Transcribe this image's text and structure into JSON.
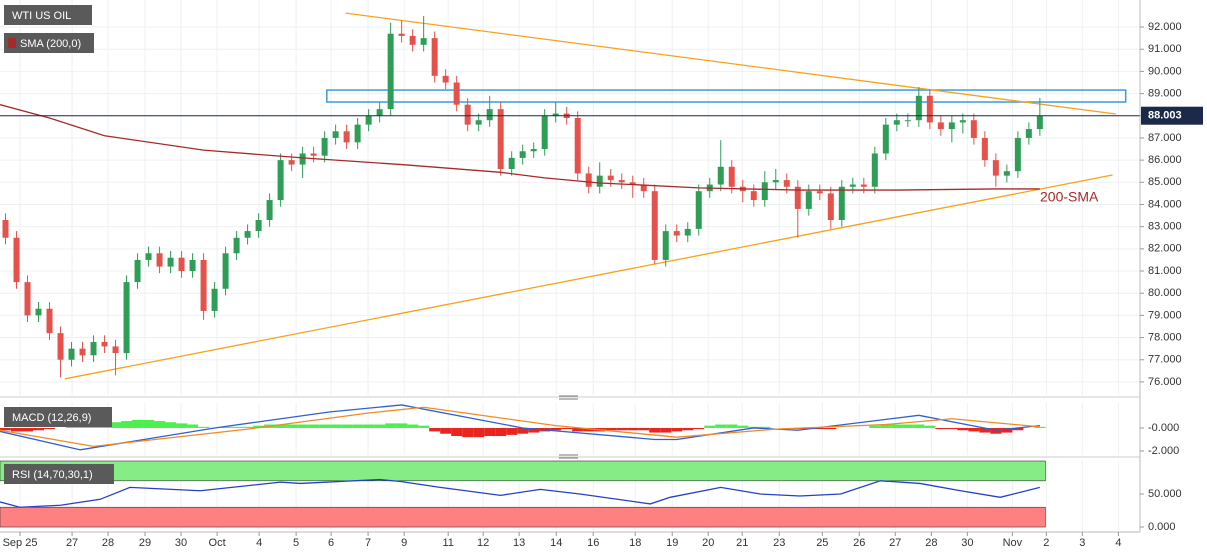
{
  "chart_data": [
    {
      "type": "candlestick",
      "title": "WTI US OIL",
      "open": [
        83.3,
        82.5,
        80.5,
        79.0,
        79.3,
        78.2,
        77.0,
        77.5,
        77.2,
        77.8,
        77.6,
        77.3,
        80.5,
        81.5,
        81.8,
        81.2,
        81.6,
        81.0,
        81.5,
        79.2,
        80.2,
        81.8,
        82.5,
        82.8,
        83.3,
        84.2,
        86.0,
        85.8,
        86.3,
        86.2,
        87.0,
        87.3,
        86.8,
        87.6,
        88.0,
        88.3,
        91.7,
        91.6,
        91.2,
        91.5,
        89.8,
        89.5,
        88.5,
        87.6,
        87.8,
        88.3,
        85.6,
        86.1,
        86.4,
        86.5,
        88.0,
        88.1,
        87.9,
        85.4,
        84.8,
        85.3,
        85.1,
        85.0,
        84.9,
        84.6,
        81.5,
        82.8,
        82.6,
        82.9,
        84.6,
        84.9,
        85.7,
        84.8,
        84.6,
        84.2,
        85.0,
        85.1,
        84.8,
        83.8,
        84.6,
        84.5,
        83.3,
        84.8,
        84.9,
        84.8,
        86.3,
        87.6,
        87.8,
        87.8,
        88.9,
        87.7,
        87.4,
        87.7,
        87.8,
        87.0,
        86.0,
        85.3,
        85.5,
        87.0,
        87.4
      ],
      "high": [
        83.6,
        82.8,
        80.8,
        79.6,
        79.6,
        78.5,
        77.8,
        77.8,
        78.1,
        78.1,
        77.9,
        80.8,
        81.8,
        82.1,
        82.1,
        81.9,
        81.9,
        81.8,
        81.8,
        80.5,
        82.1,
        82.8,
        83.1,
        83.6,
        84.5,
        86.3,
        86.3,
        86.6,
        86.6,
        87.3,
        87.6,
        87.6,
        87.9,
        88.3,
        88.6,
        92.2,
        92.3,
        91.9,
        92.5,
        91.8,
        90.1,
        89.8,
        88.8,
        88.1,
        88.9,
        88.6,
        86.4,
        86.7,
        86.8,
        88.3,
        88.6,
        88.4,
        88.2,
        85.7,
        85.9,
        85.6,
        85.4,
        85.3,
        85.2,
        84.9,
        83.1,
        83.1,
        83.2,
        84.9,
        85.2,
        86.9,
        86.0,
        85.1,
        84.9,
        85.5,
        85.6,
        85.4,
        85.1,
        84.9,
        84.9,
        84.8,
        85.1,
        85.2,
        85.2,
        86.6,
        87.9,
        88.1,
        88.1,
        89.3,
        89.2,
        88.0,
        88.0,
        88.1,
        88.1,
        87.3,
        86.3,
        85.8,
        87.3,
        87.7,
        88.8
      ],
      "low": [
        82.2,
        80.2,
        78.7,
        78.7,
        77.9,
        76.2,
        76.7,
        76.9,
        76.9,
        77.3,
        76.3,
        77.0,
        80.2,
        81.2,
        80.9,
        80.9,
        80.7,
        80.7,
        78.8,
        78.9,
        79.9,
        81.5,
        82.2,
        82.5,
        83.0,
        83.9,
        85.5,
        85.2,
        85.9,
        85.9,
        86.7,
        86.5,
        86.5,
        87.3,
        87.7,
        88.0,
        91.3,
        90.9,
        90.9,
        89.5,
        89.2,
        88.2,
        87.3,
        87.3,
        87.5,
        85.3,
        85.3,
        85.8,
        86.1,
        86.2,
        87.7,
        87.6,
        85.1,
        84.5,
        84.5,
        84.8,
        84.7,
        84.3,
        84.3,
        81.3,
        81.2,
        82.3,
        82.3,
        82.6,
        84.3,
        84.6,
        84.5,
        84.1,
        83.9,
        83.9,
        84.7,
        84.5,
        82.5,
        83.5,
        84.2,
        82.9,
        83.0,
        84.5,
        84.5,
        84.5,
        86.0,
        87.3,
        87.5,
        87.5,
        87.4,
        87.1,
        86.8,
        87.2,
        86.7,
        85.7,
        84.8,
        85.0,
        85.2,
        86.7,
        87.1
      ],
      "close": [
        82.5,
        80.5,
        79.0,
        79.3,
        78.2,
        77.0,
        77.5,
        77.2,
        77.8,
        77.6,
        77.3,
        80.5,
        81.5,
        81.8,
        81.2,
        81.6,
        81.0,
        81.5,
        79.2,
        80.2,
        81.8,
        82.5,
        82.8,
        83.3,
        84.2,
        86.0,
        85.8,
        86.3,
        86.2,
        87.0,
        87.3,
        86.8,
        87.6,
        88.0,
        88.3,
        91.7,
        91.6,
        91.2,
        91.5,
        89.8,
        89.5,
        88.5,
        87.6,
        87.8,
        88.3,
        85.6,
        86.1,
        86.4,
        86.5,
        88.0,
        88.1,
        87.9,
        85.4,
        84.8,
        85.3,
        85.1,
        85.0,
        84.9,
        84.6,
        81.5,
        82.8,
        82.6,
        82.9,
        84.6,
        84.9,
        85.7,
        84.8,
        84.6,
        84.2,
        85.0,
        85.1,
        84.8,
        83.8,
        84.6,
        84.5,
        83.3,
        84.8,
        84.9,
        84.8,
        86.3,
        87.6,
        87.8,
        87.8,
        88.9,
        87.7,
        87.4,
        87.7,
        87.8,
        87.0,
        86.0,
        85.3,
        85.5,
        87.0,
        87.4,
        88.003
      ],
      "up_color": "#2e9e57",
      "down_color": "#e5524c",
      "last_price_color": "#1c2a4a",
      "ylim": [
        75.41,
        93.22
      ],
      "yticks": [
        {
          "value": 76,
          "label": "76.000"
        },
        {
          "value": 77,
          "label": "77.000"
        },
        {
          "value": 78,
          "label": "78.000"
        },
        {
          "value": 79,
          "label": "79.000"
        },
        {
          "value": 80,
          "label": "80.000"
        },
        {
          "value": 81,
          "label": "81.000"
        },
        {
          "value": 82,
          "label": "82.000"
        },
        {
          "value": 83,
          "label": "83.000"
        },
        {
          "value": 84,
          "label": "84.000"
        },
        {
          "value": 85,
          "label": "85.000"
        },
        {
          "value": 86,
          "label": "86.000"
        },
        {
          "value": 87,
          "label": "87.000"
        },
        {
          "value": 88,
          "label": "88.000"
        },
        {
          "value": 89,
          "label": "89.000"
        },
        {
          "value": 90,
          "label": "90.000"
        },
        {
          "value": 91,
          "label": "91.000"
        },
        {
          "value": 92,
          "label": "92.000"
        }
      ],
      "xlim": [
        -0.5,
        103.1
      ],
      "xticks": [
        {
          "value": 1.32,
          "label": "Sep 25"
        },
        {
          "value": 6.05,
          "label": "27"
        },
        {
          "value": 9.32,
          "label": "28"
        },
        {
          "value": 12.68,
          "label": "29"
        },
        {
          "value": 15.95,
          "label": "30"
        },
        {
          "value": 19.23,
          "label": "Oct"
        },
        {
          "value": 23.05,
          "label": "4"
        },
        {
          "value": 26.41,
          "label": "5"
        },
        {
          "value": 29.59,
          "label": "6"
        },
        {
          "value": 32.95,
          "label": "7"
        },
        {
          "value": 36.23,
          "label": "9"
        },
        {
          "value": 40.23,
          "label": "11"
        },
        {
          "value": 43.41,
          "label": "12"
        },
        {
          "value": 46.68,
          "label": "13"
        },
        {
          "value": 50.05,
          "label": "14"
        },
        {
          "value": 53.41,
          "label": "16"
        },
        {
          "value": 57.23,
          "label": "18"
        },
        {
          "value": 60.59,
          "label": "19"
        },
        {
          "value": 63.86,
          "label": "20"
        },
        {
          "value": 66.95,
          "label": "21"
        },
        {
          "value": 70.32,
          "label": "23"
        },
        {
          "value": 74.23,
          "label": "25"
        },
        {
          "value": 77.59,
          "label": "26"
        },
        {
          "value": 80.86,
          "label": "27"
        },
        {
          "value": 84.14,
          "label": "28"
        },
        {
          "value": 87.41,
          "label": "30"
        },
        {
          "value": 91.5,
          "label": "Nov"
        },
        {
          "value": 94.59,
          "label": "2"
        },
        {
          "value": 97.86,
          "label": "3"
        },
        {
          "value": 101.14,
          "label": "4"
        }
      ],
      "grid": true,
      "series": [
        {
          "name": "SMA (200,0)",
          "color": "#a52a2a",
          "x": [
            -0.5,
            4,
            9,
            18,
            27,
            36,
            45,
            49,
            54,
            63,
            72,
            81,
            90,
            94
          ],
          "values": [
            88.5,
            87.9,
            87.1,
            86.45,
            86.1,
            85.8,
            85.45,
            85.2,
            84.97,
            84.75,
            84.65,
            84.65,
            84.7,
            84.7
          ]
        }
      ],
      "trendlines": [
        {
          "color": "#f7a21b",
          "x": [
            30.9,
            100.9
          ],
          "values": [
            92.63,
            88.08
          ]
        },
        {
          "color": "#f7a21b",
          "x": [
            5.4,
            100.6
          ],
          "values": [
            76.14,
            85.33
          ]
        }
      ],
      "zone": {
        "color": "#3a9ae0",
        "x": [
          29.2,
          101.8
        ],
        "values": [
          89.16,
          88.62
        ]
      },
      "annotations": [
        "200-SMA"
      ]
    },
    {
      "type": "macd",
      "title": "MACD (12,26,9)",
      "histogram": {
        "up_color": "#4cf04c",
        "down_color": "#e8251f",
        "values": [
          -0.2,
          -0.3,
          -0.3,
          -0.2,
          -0.1,
          0,
          0.1,
          0.2,
          0.3,
          0.4,
          0.5,
          0.6,
          0.7,
          0.7,
          0.6,
          0.5,
          0.4,
          0.3,
          0.1,
          0.0,
          0.1,
          0.1,
          0.1,
          0.2,
          0.3,
          0.3,
          0.3,
          0.3,
          0.3,
          0.3,
          0.3,
          0.3,
          0.3,
          0.3,
          0.3,
          0.4,
          0.4,
          0.3,
          0.2,
          -0.3,
          -0.5,
          -0.7,
          -0.8,
          -0.8,
          -0.7,
          -0.7,
          -0.6,
          -0.5,
          -0.4,
          -0.3,
          -0.2,
          -0.1,
          -0.3,
          -0.3,
          -0.3,
          -0.2,
          -0.2,
          -0.2,
          -0.2,
          -0.4,
          -0.4,
          -0.3,
          -0.2,
          -0.1,
          0.2,
          0.3,
          0.3,
          0.2,
          0.1,
          0.1,
          0.0,
          0.0,
          -0.1,
          -0.1,
          -0.1,
          -0.1,
          0.0,
          0.0,
          0.0,
          0.2,
          0.3,
          0.3,
          0.3,
          0.3,
          0.2,
          -0.1,
          -0.1,
          -0.2,
          -0.3,
          -0.4,
          -0.5,
          -0.4,
          -0.2,
          0.0,
          0.1
        ]
      },
      "series": [
        {
          "color": "#2f5fd0",
          "x": [
            -0.5,
            6.8,
            19,
            29.5,
            36,
            47,
            59,
            61,
            68,
            72,
            83,
            90,
            94
          ],
          "values": [
            -0.3,
            -1.9,
            0.0,
            1.4,
            2.0,
            0.0,
            -1.0,
            -1.0,
            0.0,
            -0.2,
            1.1,
            -0.2,
            0.2
          ]
        },
        {
          "color": "#f08a24",
          "x": [
            -0.5,
            8,
            22,
            33,
            38,
            50,
            61,
            70,
            80,
            86,
            94
          ],
          "values": [
            -0.2,
            -1.6,
            -0.1,
            1.3,
            1.8,
            0.2,
            -0.8,
            -0.1,
            0.3,
            0.8,
            0.1
          ]
        }
      ],
      "ylim": [
        -2.35,
        2.17
      ],
      "yticks": [
        {
          "value": 0,
          "label": "-0.000"
        },
        {
          "value": -2,
          "label": "-2.000"
        }
      ]
    },
    {
      "type": "line",
      "title": "RSI (14,70,30,1)",
      "series": [
        {
          "color": "#2440c8",
          "x": [
            -0.5,
            1.3,
            5,
            8.6,
            11.3,
            17.7,
            25,
            26.8,
            34,
            35.9,
            39.5,
            45,
            48.6,
            52.2,
            58.6,
            60.4,
            65,
            68.6,
            72.2,
            75.9,
            79.5,
            83.1,
            86.8,
            90.4,
            94
          ],
          "values": [
            38,
            30,
            33,
            42,
            60,
            55,
            68,
            66,
            72,
            69,
            60,
            48,
            57,
            50,
            35,
            45,
            60,
            50,
            47,
            50,
            70,
            66,
            55,
            45,
            60
          ]
        }
      ],
      "bands": [
        {
          "range": [
            70,
            100
          ],
          "color": "#86ec86"
        },
        {
          "range": [
            0,
            30
          ],
          "color": "#ff8080"
        }
      ],
      "ylim": [
        -4.5,
        100
      ],
      "yticks": [
        {
          "value": 50,
          "label": "50.000"
        },
        {
          "value": 0,
          "label": "0.000"
        }
      ]
    }
  ]
}
